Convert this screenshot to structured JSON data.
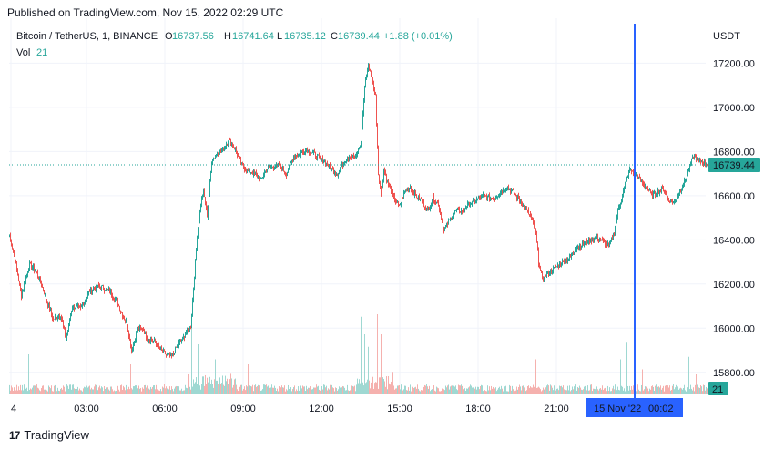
{
  "header": {
    "published": "Published on TradingView.com, Nov 15, 2022 02:29 UTC"
  },
  "legend": {
    "symbol": "Bitcoin / TetherUS, 1, BINANCE",
    "open_label": "O",
    "open": "16737.56",
    "high_label": "H",
    "high": "16741.64",
    "low_label": "L",
    "low": "16735.12",
    "close_label": "C",
    "close": "16739.44",
    "change": "+1.88 (+0.01%)",
    "vol_label": "Vol",
    "vol": "21"
  },
  "price_axis": {
    "currency": "USDT",
    "current_price": "16739.44",
    "current_volume": "21",
    "ticks": [
      "17200.00",
      "17000.00",
      "16800.00",
      "16600.00",
      "16400.00",
      "16200.00",
      "16000.00",
      "15800.00"
    ]
  },
  "time_axis": {
    "ticks": [
      "4",
      "03:00",
      "06:00",
      "09:00",
      "12:00",
      "15:00",
      "18:00",
      "21:00"
    ],
    "cursor_date": "15 Nov '22",
    "cursor_time": "00:02"
  },
  "brand": {
    "name": "TradingView"
  },
  "colors": {
    "up": "#26a69a",
    "down": "#ef5350",
    "cursor": "#2962ff",
    "price_line": "#26a69a"
  },
  "chart_data": {
    "type": "candlestick",
    "title": "Bitcoin / TetherUS, 1, BINANCE",
    "interval": "1 minute",
    "ylim": [
      15700,
      17280
    ],
    "grid": true,
    "price_line": 16739.44,
    "cursor_time": "15 Nov '22 00:02",
    "x_labels": [
      "4",
      "03:00",
      "06:00",
      "09:00",
      "12:00",
      "15:00",
      "18:00",
      "21:00"
    ],
    "anchors": [
      [
        0,
        16420
      ],
      [
        5,
        16330
      ],
      [
        13,
        16150
      ],
      [
        22,
        16290
      ],
      [
        30,
        16250
      ],
      [
        38,
        16160
      ],
      [
        48,
        16040
      ],
      [
        56,
        16060
      ],
      [
        62,
        15950
      ],
      [
        69,
        16100
      ],
      [
        78,
        16090
      ],
      [
        88,
        16170
      ],
      [
        98,
        16190
      ],
      [
        109,
        16170
      ],
      [
        117,
        16130
      ],
      [
        124,
        16060
      ],
      [
        129,
        16020
      ],
      [
        134,
        15900
      ],
      [
        140,
        15990
      ],
      [
        146,
        16000
      ],
      [
        152,
        15950
      ],
      [
        159,
        15940
      ],
      [
        166,
        15900
      ],
      [
        172,
        15880
      ],
      [
        178,
        15870
      ],
      [
        184,
        15920
      ],
      [
        190,
        15950
      ],
      [
        195,
        15990
      ],
      [
        199,
        16010
      ],
      [
        203,
        16240
      ],
      [
        206,
        16420
      ],
      [
        210,
        16560
      ],
      [
        213,
        16620
      ],
      [
        217,
        16510
      ],
      [
        222,
        16760
      ],
      [
        228,
        16790
      ],
      [
        234,
        16810
      ],
      [
        241,
        16850
      ],
      [
        248,
        16810
      ],
      [
        255,
        16740
      ],
      [
        262,
        16710
      ],
      [
        270,
        16700
      ],
      [
        276,
        16670
      ],
      [
        282,
        16720
      ],
      [
        289,
        16730
      ],
      [
        296,
        16740
      ],
      [
        304,
        16700
      ],
      [
        312,
        16780
      ],
      [
        319,
        16790
      ],
      [
        326,
        16810
      ],
      [
        334,
        16790
      ],
      [
        340,
        16770
      ],
      [
        347,
        16750
      ],
      [
        354,
        16720
      ],
      [
        360,
        16700
      ],
      [
        368,
        16760
      ],
      [
        374,
        16780
      ],
      [
        380,
        16770
      ],
      [
        386,
        16840
      ],
      [
        390,
        17100
      ],
      [
        394,
        17190
      ],
      [
        398,
        17130
      ],
      [
        402,
        17050
      ],
      [
        405,
        16700
      ],
      [
        408,
        16600
      ],
      [
        411,
        16720
      ],
      [
        416,
        16650
      ],
      [
        422,
        16590
      ],
      [
        428,
        16550
      ],
      [
        434,
        16620
      ],
      [
        440,
        16640
      ],
      [
        446,
        16600
      ],
      [
        452,
        16580
      ],
      [
        459,
        16530
      ],
      [
        465,
        16590
      ],
      [
        471,
        16560
      ],
      [
        477,
        16440
      ],
      [
        483,
        16490
      ],
      [
        490,
        16530
      ],
      [
        497,
        16530
      ],
      [
        503,
        16560
      ],
      [
        509,
        16570
      ],
      [
        515,
        16590
      ],
      [
        521,
        16600
      ],
      [
        527,
        16590
      ],
      [
        533,
        16590
      ],
      [
        540,
        16620
      ],
      [
        546,
        16640
      ],
      [
        552,
        16620
      ],
      [
        558,
        16590
      ],
      [
        564,
        16560
      ],
      [
        570,
        16520
      ],
      [
        574,
        16490
      ],
      [
        578,
        16430
      ],
      [
        581,
        16300
      ],
      [
        585,
        16220
      ],
      [
        589,
        16240
      ],
      [
        595,
        16260
      ],
      [
        601,
        16280
      ],
      [
        608,
        16300
      ],
      [
        616,
        16320
      ],
      [
        623,
        16370
      ],
      [
        630,
        16380
      ],
      [
        638,
        16400
      ],
      [
        645,
        16410
      ],
      [
        652,
        16390
      ],
      [
        658,
        16370
      ],
      [
        664,
        16430
      ],
      [
        668,
        16530
      ],
      [
        672,
        16590
      ],
      [
        676,
        16650
      ],
      [
        681,
        16720
      ],
      [
        686,
        16700
      ],
      [
        691,
        16680
      ],
      [
        696,
        16650
      ],
      [
        701,
        16630
      ],
      [
        706,
        16600
      ],
      [
        712,
        16620
      ],
      [
        718,
        16630
      ],
      [
        724,
        16580
      ],
      [
        730,
        16570
      ],
      [
        736,
        16620
      ],
      [
        741,
        16660
      ],
      [
        746,
        16720
      ],
      [
        751,
        16780
      ],
      [
        756,
        16760
      ],
      [
        762,
        16750
      ],
      [
        767,
        16739.44
      ]
    ],
    "volume_scale_max": 200,
    "volume_spikes": [
      [
        21,
        80
      ],
      [
        96,
        55
      ],
      [
        133,
        60
      ],
      [
        200,
        150
      ],
      [
        207,
        100
      ],
      [
        226,
        70
      ],
      [
        262,
        60
      ],
      [
        386,
        155
      ],
      [
        390,
        120
      ],
      [
        394,
        95
      ],
      [
        404,
        160
      ],
      [
        408,
        120
      ],
      [
        421,
        45
      ],
      [
        578,
        70
      ],
      [
        671,
        70
      ],
      [
        678,
        105
      ],
      [
        695,
        50
      ],
      [
        746,
        75
      ],
      [
        754,
        40
      ]
    ]
  }
}
